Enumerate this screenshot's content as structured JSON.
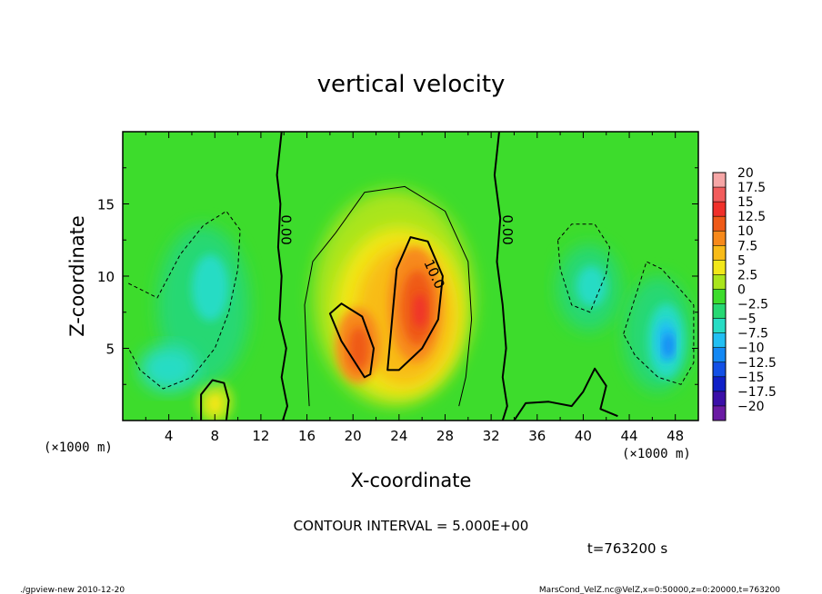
{
  "chart_data": {
    "type": "heatmap",
    "title": "vertical velocity",
    "xlabel": "X-coordinate",
    "ylabel": "Z-coordinate",
    "x_unit": "(×1000 m)",
    "x_unit_right": "(×1000 m)",
    "xlim": [
      0,
      50
    ],
    "ylim": [
      0,
      20
    ],
    "x_ticks": [
      "4",
      "8",
      "12",
      "16",
      "20",
      "24",
      "28",
      "32",
      "36",
      "40",
      "44",
      "48"
    ],
    "x_tick_values": [
      4,
      8,
      12,
      16,
      20,
      24,
      28,
      32,
      36,
      40,
      44,
      48
    ],
    "y_ticks": [
      "5",
      "10",
      "15"
    ],
    "y_tick_values": [
      5,
      10,
      15
    ],
    "colorbar": {
      "labels": [
        "20",
        "17.5",
        "15",
        "12.5",
        "10",
        "7.5",
        "5",
        "2.5",
        "0",
        "−2.5",
        "−5",
        "−7.5",
        "−10",
        "−12.5",
        "−15",
        "−17.5",
        "−20"
      ],
      "colors": [
        "#f6a6a6",
        "#f25c5c",
        "#f0302a",
        "#ef5a18",
        "#f7891a",
        "#f8bb18",
        "#f2e719",
        "#a9e51c",
        "#3ddc2c",
        "#26d873",
        "#27dcc4",
        "#21bff3",
        "#1388f4",
        "#1350e6",
        "#1020c8",
        "#3b0fa8",
        "#6a1aa3"
      ]
    },
    "contour_labels": [
      {
        "text": "0.00",
        "x": 13.8,
        "z": 13.2
      },
      {
        "text": "0.00",
        "x": 33.0,
        "z": 13.2
      },
      {
        "text": "10.0",
        "x": 26.7,
        "z": 10.0
      }
    ],
    "features": [
      {
        "kind": "updraft",
        "x": 25.6,
        "z": 7.9,
        "w": 14
      },
      {
        "kind": "updraft",
        "x": 20.5,
        "z": 5.0,
        "w": 14
      },
      {
        "kind": "updraft",
        "x": 8.0,
        "z": 1.2,
        "w": 5
      },
      {
        "kind": "downdraft",
        "x": 7.5,
        "z": 9.0,
        "w": -6
      },
      {
        "kind": "downdraft",
        "x": 47.2,
        "z": 5.5,
        "w": -10
      },
      {
        "kind": "downdraft",
        "x": 40.5,
        "z": 9.2,
        "w": -5
      }
    ]
  },
  "contour_interval": "CONTOUR INTERVAL = 5.000E+00",
  "time_label": "t=763200 s",
  "footer_left": "./gpview-new  2010-12-20",
  "footer_right": "MarsCond_VelZ.nc@VelZ,x=0:50000,z=0:20000,t=763200"
}
